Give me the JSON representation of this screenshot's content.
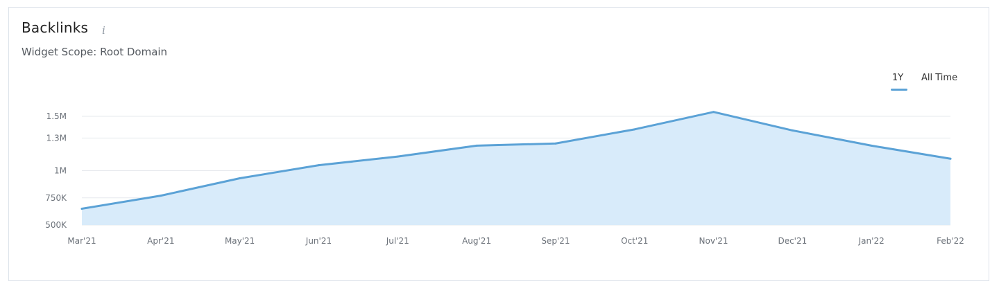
{
  "widget": {
    "title": "Backlinks",
    "info_icon": "info-icon",
    "info_glyph": "i",
    "subtitle": "Widget Scope: Root Domain",
    "range_tabs": [
      "1Y",
      "All Time"
    ],
    "active_tab": "1Y"
  },
  "colors": {
    "line": "#5ba2d6",
    "fill": "#d8ebfa",
    "grid": "#e6e9ed",
    "axis_text": "#6b7179",
    "accent": "#5ba2d6"
  },
  "chart_data": {
    "type": "area",
    "categories": [
      "Mar'21",
      "Apr'21",
      "May'21",
      "Jun'21",
      "Jul'21",
      "Aug'21",
      "Sep'21",
      "Oct'21",
      "Nov'21",
      "Dec'21",
      "Jan'22",
      "Feb'22"
    ],
    "values": [
      650000,
      770000,
      930000,
      1050000,
      1130000,
      1230000,
      1250000,
      1380000,
      1540000,
      1370000,
      1230000,
      1110000
    ],
    "y_ticks": [
      500000,
      750000,
      1000000,
      1300000,
      1500000
    ],
    "y_tick_labels": [
      "500K",
      "750K",
      "1M",
      "1.3M",
      "1.5M"
    ],
    "ylim": [
      500000,
      1500000
    ],
    "grid": true,
    "legend": "none",
    "title": "Backlinks",
    "xlabel": "",
    "ylabel": ""
  }
}
